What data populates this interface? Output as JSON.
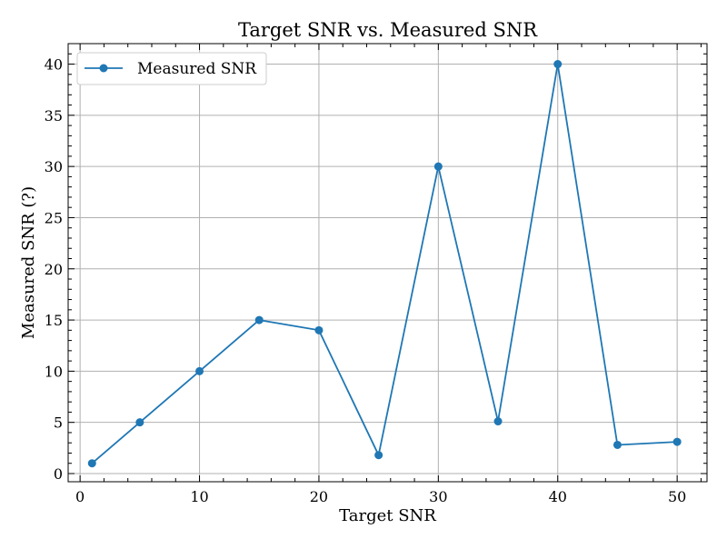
{
  "chart_data": {
    "type": "line",
    "title": "Target SNR vs. Measured SNR",
    "xlabel": "Target SNR",
    "ylabel": "Measured SNR (?)",
    "xlim": [
      -1,
      52.5
    ],
    "ylim": [
      -0.8,
      42
    ],
    "xticks": [
      0,
      10,
      20,
      30,
      40,
      50
    ],
    "yticks": [
      0,
      5,
      10,
      15,
      20,
      25,
      30,
      35,
      40
    ],
    "grid": true,
    "legend_position": "top-left",
    "series": [
      {
        "name": "Measured SNR",
        "color": "#1f77b4",
        "marker": "circle",
        "x": [
          1,
          5,
          10,
          15,
          20,
          25,
          30,
          35,
          40,
          45,
          50
        ],
        "y": [
          1.0,
          5.0,
          10.0,
          15.0,
          14.0,
          1.8,
          30.0,
          5.1,
          40.0,
          2.8,
          3.1
        ]
      }
    ]
  }
}
